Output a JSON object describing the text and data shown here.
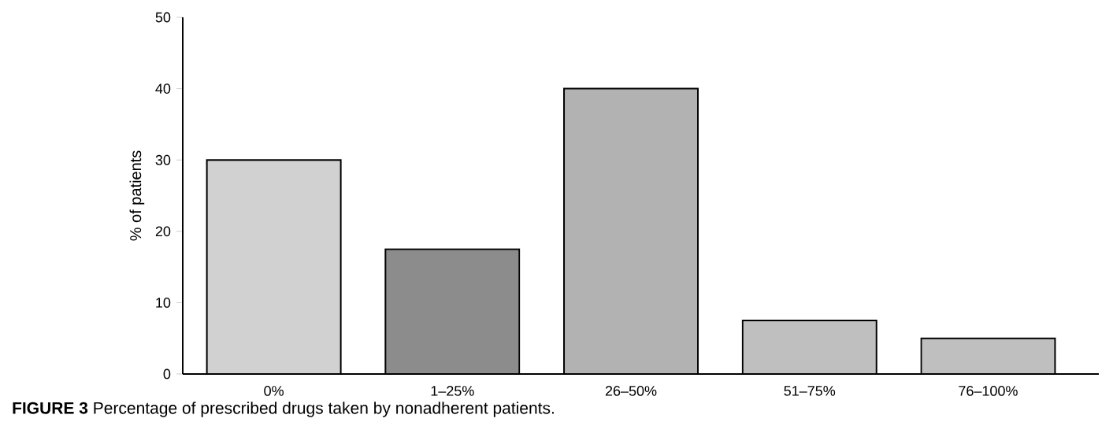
{
  "chart_data": {
    "type": "bar",
    "categories": [
      "0%",
      "1–25%",
      "26–50%",
      "51–75%",
      "76–100%"
    ],
    "values": [
      30,
      17.5,
      40,
      7.5,
      5
    ],
    "color": "#000000",
    "ylabel": "% of patients",
    "ylim": [
      0,
      50
    ],
    "yticks": [
      0,
      10,
      20,
      30,
      40,
      50
    ],
    "grid": false,
    "annotations": [
      "**FIGURE 3** Percentage of prescribed drugs taken by nonadherent patients."
    ]
  }
}
